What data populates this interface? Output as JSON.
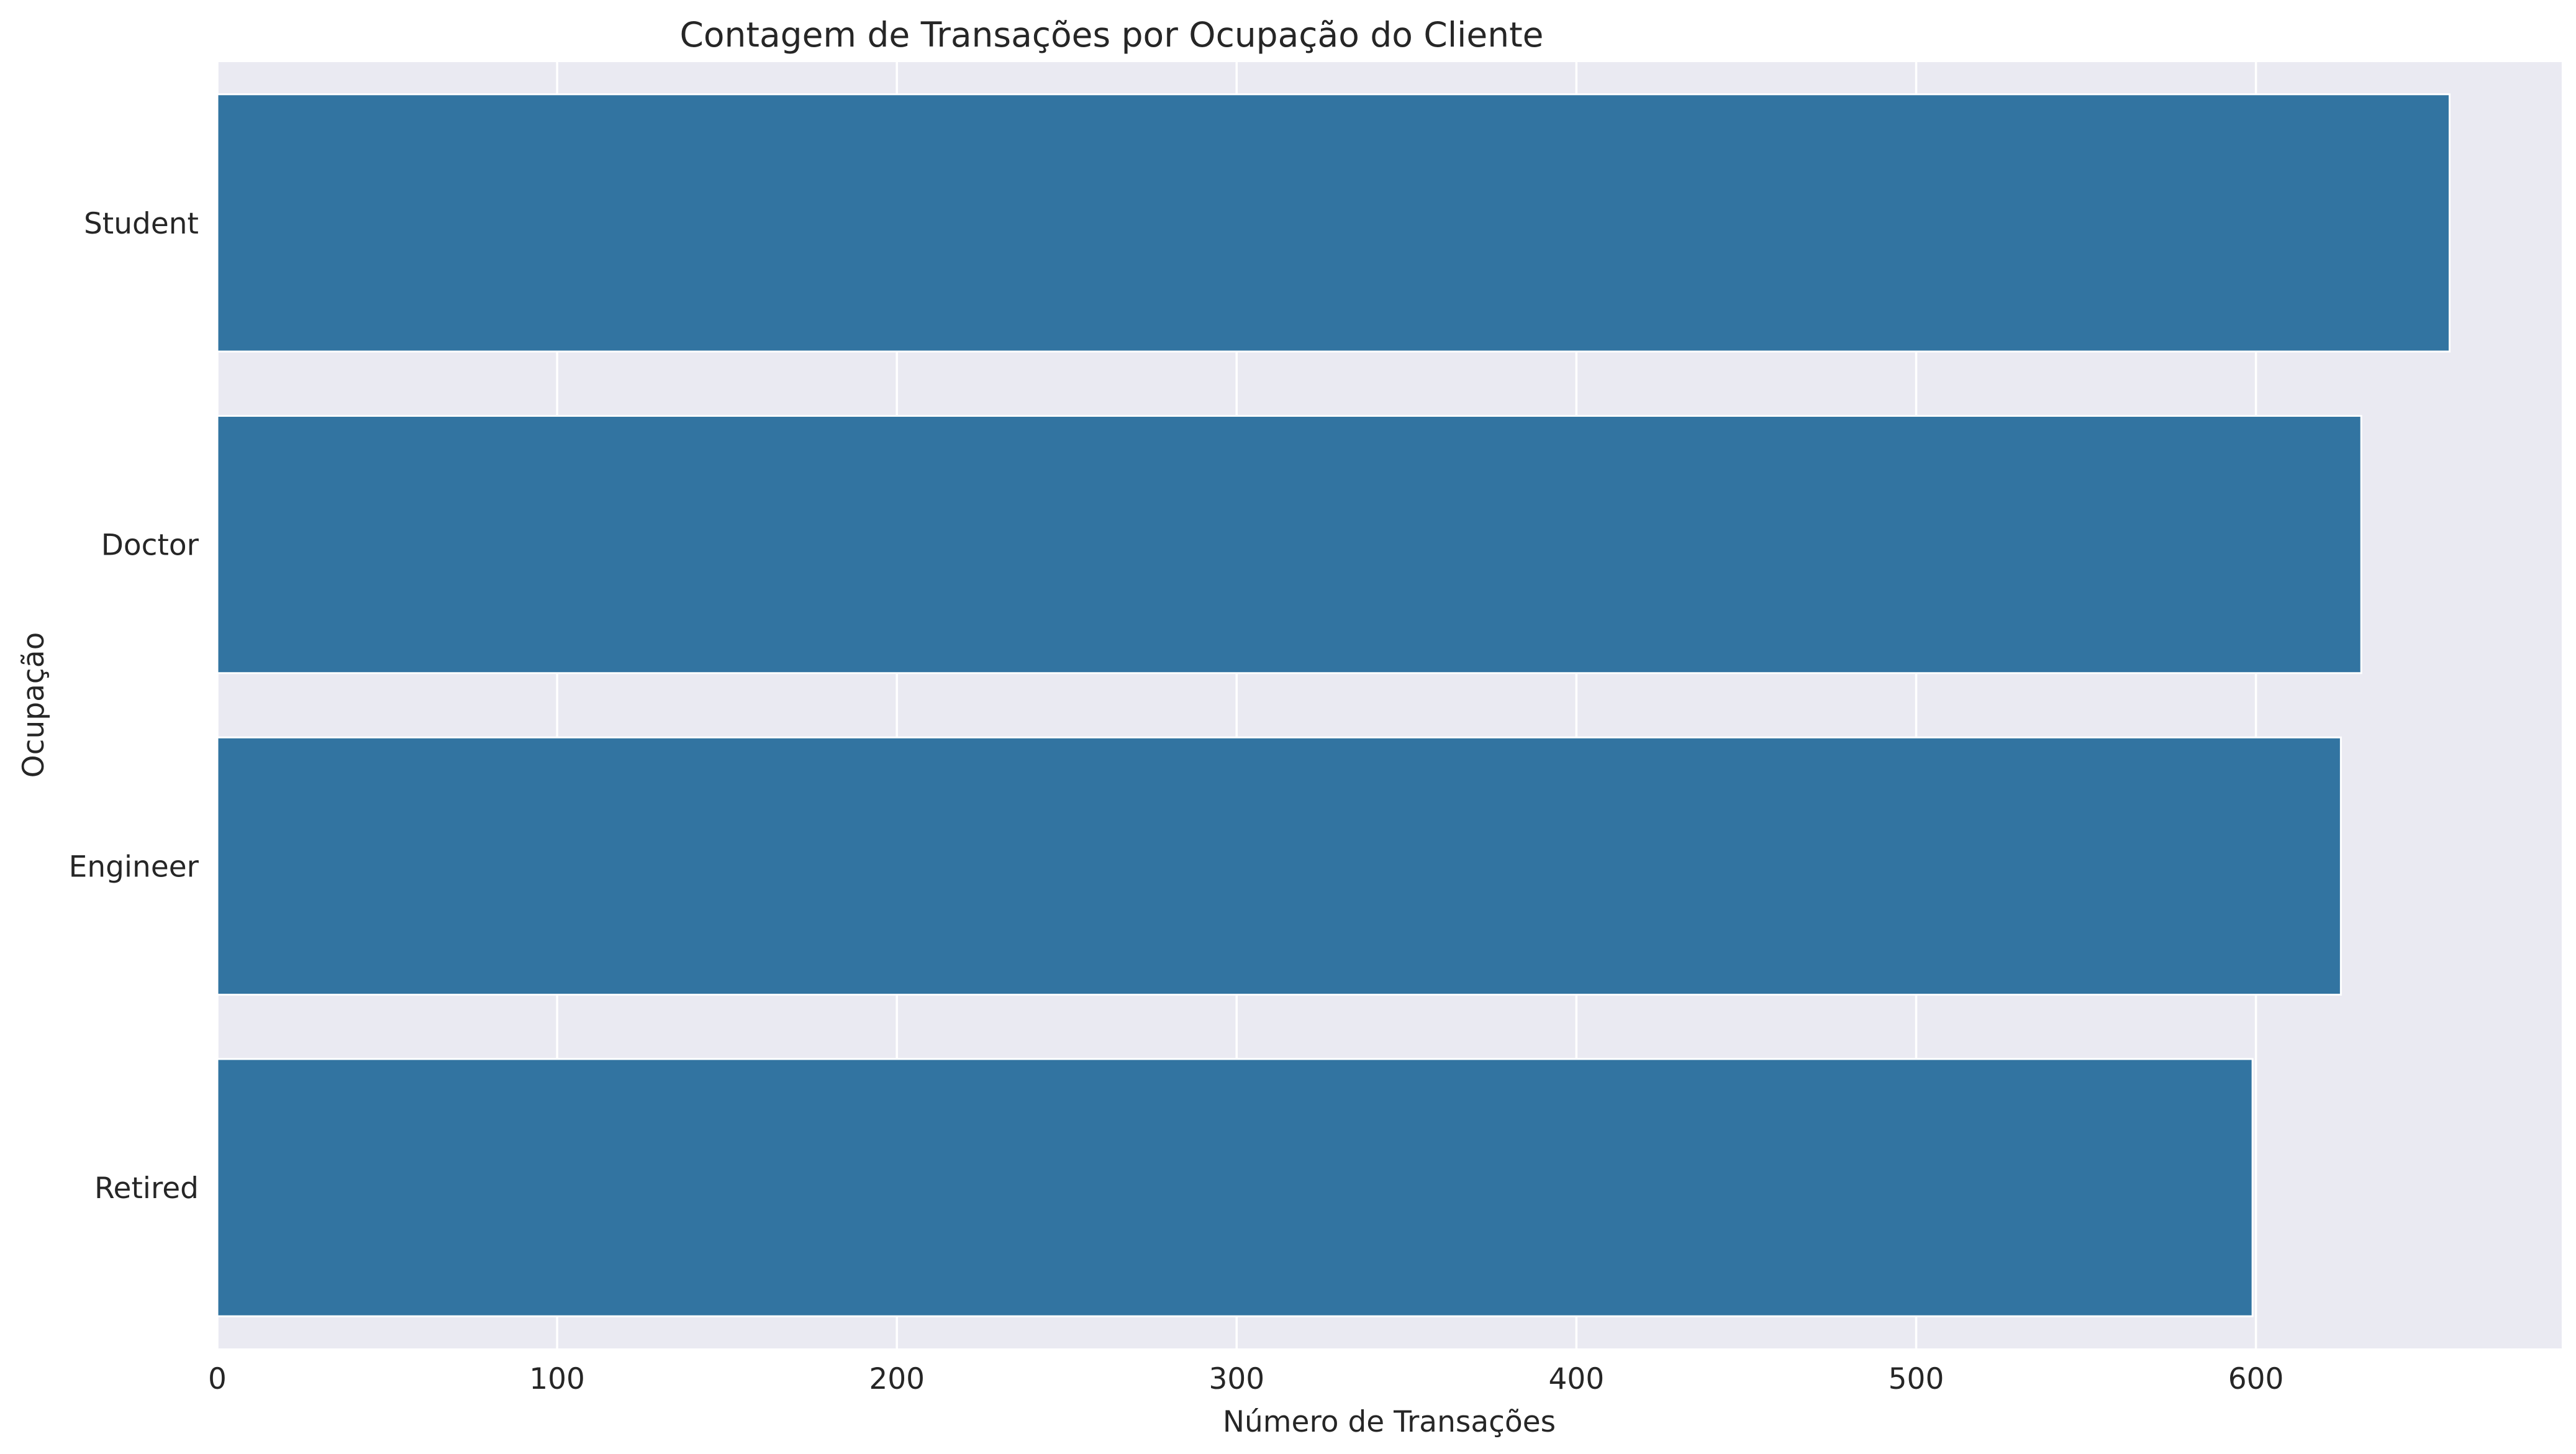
{
  "chart_data": {
    "type": "bar",
    "orientation": "horizontal",
    "title": "Contagem de Transações por Ocupação do Cliente",
    "xlabel": "Número de Transações",
    "ylabel": "Ocupação",
    "categories": [
      "Student",
      "Doctor",
      "Engineer",
      "Retired"
    ],
    "values": [
      657,
      631,
      625,
      599
    ],
    "xlim": [
      0,
      690
    ],
    "xticks": [
      0,
      100,
      200,
      300,
      400,
      500,
      600
    ],
    "grid": true,
    "colors": {
      "bar": "#3274a1",
      "plot_background": "#eaeaf2",
      "figure_background": "#ffffff",
      "grid": "#ffffff"
    }
  }
}
